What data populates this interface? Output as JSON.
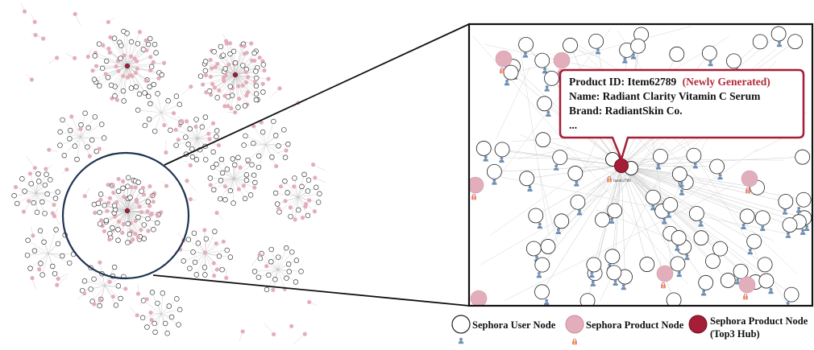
{
  "tooltip": {
    "line1_prefix": "Product ID: Item62789",
    "line1_tag": "(Newly Generated)",
    "line2": "Name: Radiant Clarity Vitamin C Serum",
    "line3": "Brand: RadiantSkin Co.",
    "line4": "..."
  },
  "highlight_node_label": "Item62789",
  "legend": {
    "user_node": "Sephora User Node",
    "product_node": "Sephora Product Node",
    "hub_node_line1": "Sephora Product Node",
    "hub_node_line2": "(Top3 Hub)"
  },
  "colors": {
    "user_node_fill": "#ffffff",
    "user_node_stroke": "#222222",
    "product_node_fill": "#e3aebb",
    "hub_node_fill": "#a51d36",
    "tag_red": "#b02a3a",
    "edge": "#bbbbbb",
    "zoom_ring": "#1f3352",
    "user_icon": "#6f8fb3",
    "bag_icon": "#e86aa8"
  },
  "icons": {
    "user_node_icon": "person-icon",
    "product_node_icon": "shopping-bag-icon"
  }
}
